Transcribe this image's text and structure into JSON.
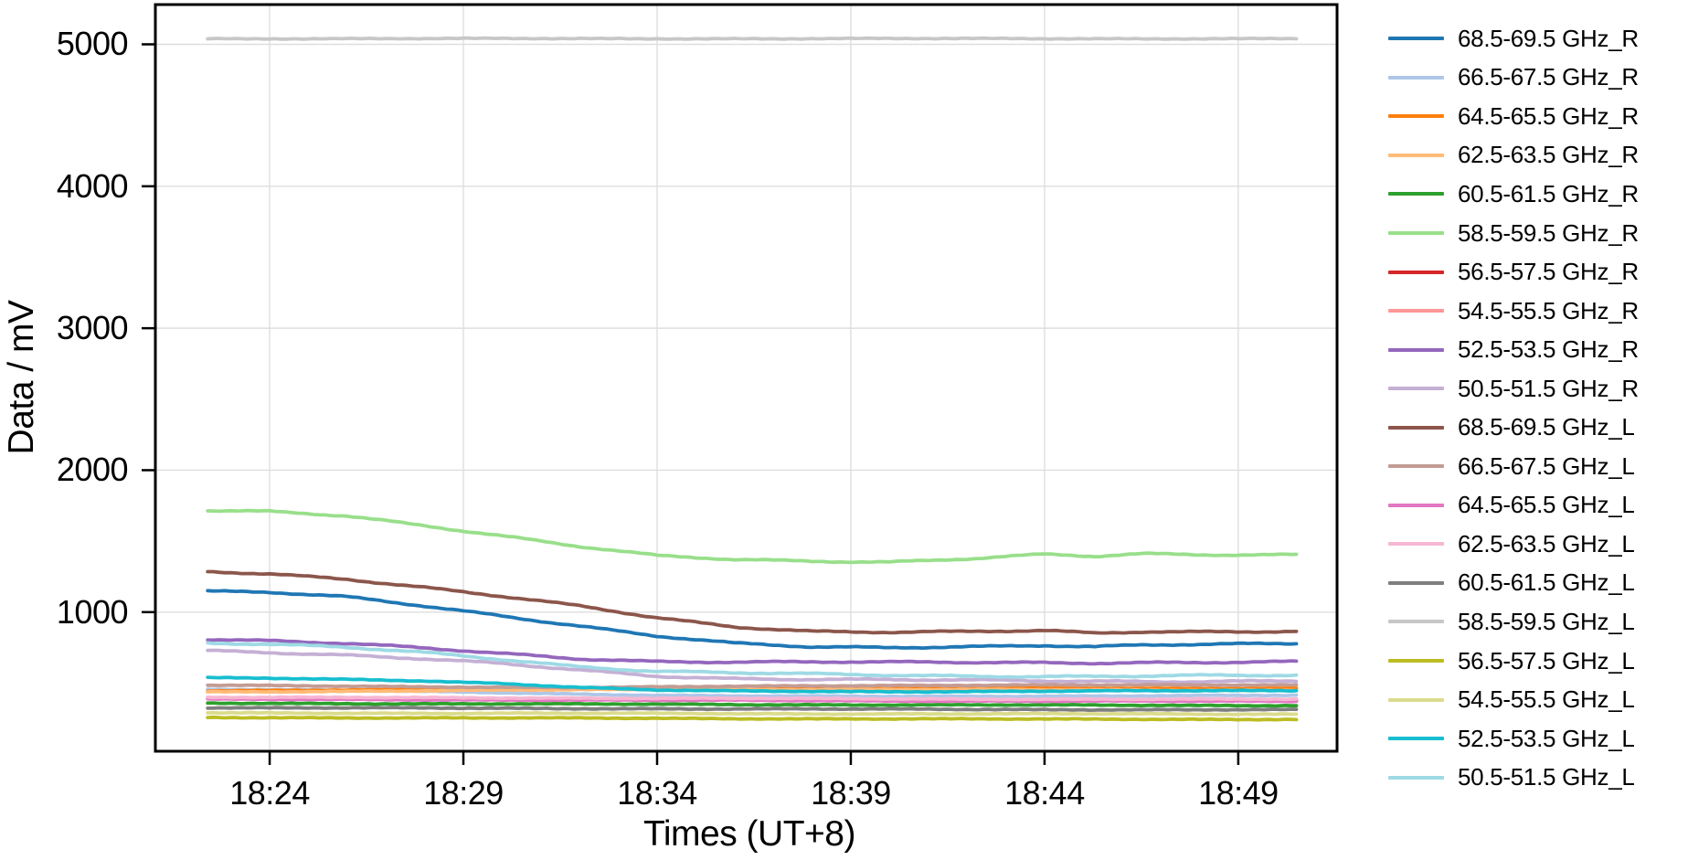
{
  "chart_data": {
    "type": "line",
    "title": "",
    "xlabel": "Times (UT+8)",
    "ylabel": "Data / mV",
    "grid": true,
    "grid_color": "#dedede",
    "frame_color": "#000000",
    "background_color": "#ffffff",
    "legend_position": "right-outside",
    "xlim_minutes_after_1800": [
      21.05,
      51.55
    ],
    "ylim": [
      20,
      5280
    ],
    "x_ticks": [
      {
        "minute": 24,
        "label": "18:24"
      },
      {
        "minute": 29,
        "label": "18:29"
      },
      {
        "minute": 34,
        "label": "18:34"
      },
      {
        "minute": 39,
        "label": "18:39"
      },
      {
        "minute": 44,
        "label": "18:44"
      },
      {
        "minute": 49,
        "label": "18:49"
      }
    ],
    "y_ticks": [
      {
        "value": 1000,
        "label": "1000"
      },
      {
        "value": 2000,
        "label": "2000"
      },
      {
        "value": 3000,
        "label": "3000"
      },
      {
        "value": 4000,
        "label": "4000"
      },
      {
        "value": 5000,
        "label": "5000"
      }
    ],
    "x_minutes_after_1800": [
      22.4,
      24,
      26,
      28,
      30,
      32,
      34,
      36,
      38,
      40,
      42,
      44,
      45.3,
      46.5,
      48,
      50.5
    ],
    "series": [
      {
        "name": "68.5-69.5 GHz_R",
        "color": "#1f77b4",
        "values": [
          1148,
          1138,
          1104,
          1042,
          975,
          905,
          832,
          778,
          752,
          750,
          760,
          768,
          757,
          766,
          770,
          777
        ]
      },
      {
        "name": "66.5-67.5 GHz_R",
        "color": "#aec7e8",
        "values": [
          458,
          454,
          448,
          440,
          432,
          423,
          415,
          410,
          407,
          406,
          407,
          409,
          410,
          411,
          412,
          413
        ]
      },
      {
        "name": "64.5-65.5 GHz_R",
        "color": "#ff7f0e",
        "values": [
          447,
          449,
          452,
          456,
          460,
          464,
          467,
          469,
          468,
          467,
          466,
          465,
          465,
          464,
          463,
          462
        ]
      },
      {
        "name": "62.5-63.5 GHz_R",
        "color": "#ffbb78",
        "values": [
          438,
          440,
          443,
          446,
          450,
          453,
          455,
          456,
          455,
          454,
          453,
          452,
          452,
          451,
          450,
          449
        ]
      },
      {
        "name": "60.5-61.5 GHz_R",
        "color": "#2ca02c",
        "values": [
          358,
          357,
          356,
          355,
          354,
          352,
          351,
          349,
          348,
          347,
          346,
          345,
          344,
          344,
          343,
          343
        ]
      },
      {
        "name": "58.5-59.5 GHz_R",
        "color": "#98df8a",
        "values": [
          1712,
          1706,
          1678,
          1612,
          1540,
          1462,
          1395,
          1368,
          1360,
          1356,
          1378,
          1406,
          1390,
          1408,
          1402,
          1407
        ]
      },
      {
        "name": "56.5-57.5 GHz_R",
        "color": "#d62728",
        "values": [
          390,
          389,
          388,
          386,
          385,
          384,
          383,
          381,
          380,
          379,
          378,
          377,
          377,
          376,
          376,
          376
        ]
      },
      {
        "name": "54.5-55.5 GHz_R",
        "color": "#ff9896",
        "values": [
          398,
          397,
          396,
          395,
          394,
          392,
          391,
          389,
          388,
          387,
          386,
          385,
          385,
          384,
          384,
          384
        ]
      },
      {
        "name": "52.5-53.5 GHz_R",
        "color": "#9467bd",
        "values": [
          812,
          801,
          779,
          744,
          706,
          672,
          655,
          650,
          648,
          645,
          645,
          646,
          644,
          647,
          646,
          648
        ]
      },
      {
        "name": "50.5-51.5 GHz_R",
        "color": "#c5b0d5",
        "values": [
          730,
          719,
          699,
          670,
          634,
          590,
          550,
          534,
          528,
          522,
          518,
          515,
          514,
          514,
          514,
          516
        ]
      },
      {
        "name": "68.5-69.5 GHz_L",
        "color": "#8c564b",
        "values": [
          1283,
          1271,
          1235,
          1176,
          1110,
          1040,
          958,
          898,
          868,
          860,
          861,
          867,
          850,
          862,
          864,
          868
        ]
      },
      {
        "name": "66.5-67.5 GHz_L",
        "color": "#c49c94",
        "values": [
          484,
          482,
          479,
          475,
          471,
          468,
          472,
          478,
          482,
          484,
          485,
          486,
          486,
          486,
          487,
          488
        ]
      },
      {
        "name": "64.5-65.5 GHz_L",
        "color": "#e377c2",
        "values": [
          386,
          385,
          384,
          383,
          382,
          381,
          379,
          378,
          376,
          375,
          374,
          373,
          373,
          372,
          372,
          372
        ]
      },
      {
        "name": "62.5-63.5 GHz_L",
        "color": "#f7b6d2",
        "values": [
          400,
          399,
          398,
          397,
          396,
          395,
          393,
          392,
          390,
          389,
          388,
          387,
          387,
          386,
          386,
          386
        ]
      },
      {
        "name": "60.5-61.5 GHz_L",
        "color": "#7f7f7f",
        "values": [
          327,
          326,
          325,
          324,
          322,
          321,
          320,
          318,
          317,
          316,
          315,
          314,
          313,
          313,
          312,
          312
        ]
      },
      {
        "name": "58.5-59.5 GHz_L",
        "color": "#c7c7c7",
        "values": [
          5040,
          5040,
          5040,
          5040,
          5040,
          5040,
          5040,
          5040,
          5040,
          5040,
          5040,
          5040,
          5040,
          5040,
          5040,
          5040
        ]
      },
      {
        "name": "56.5-57.5 GHz_L",
        "color": "#bcbd22",
        "values": [
          258,
          257,
          256,
          255,
          254,
          253,
          252,
          250,
          249,
          248,
          247,
          246,
          246,
          246,
          245,
          245
        ]
      },
      {
        "name": "54.5-55.5 GHz_L",
        "color": "#dbdb8d",
        "values": [
          290,
          289,
          289,
          288,
          288,
          287,
          286,
          285,
          284,
          284,
          283,
          283,
          283,
          283,
          282,
          282
        ]
      },
      {
        "name": "52.5-53.5 GHz_L",
        "color": "#17becf",
        "values": [
          537,
          533,
          526,
          516,
          498,
          470,
          450,
          444,
          442,
          440,
          441,
          443,
          444,
          445,
          446,
          448
        ]
      },
      {
        "name": "50.5-51.5 GHz_L",
        "color": "#9edae5",
        "values": [
          782,
          771,
          749,
          716,
          670,
          618,
          582,
          570,
          563,
          557,
          552,
          548,
          547,
          548,
          551,
          554
        ]
      }
    ]
  }
}
